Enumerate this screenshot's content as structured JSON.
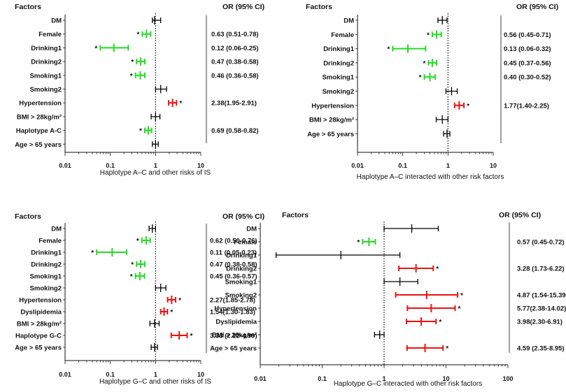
{
  "chart_data": [
    {
      "type": "forest",
      "factors_header": "Factors",
      "or_header": "OR (95% CI)",
      "caption": "Haplotype A–C and other risks of IS",
      "xscale": "log",
      "xlim": [
        0.01,
        10
      ],
      "xticks": [
        "0.01",
        "0.1",
        "1",
        "10"
      ],
      "reference_line": 1,
      "rows": [
        {
          "label": "DM",
          "or": 0.95,
          "lo": 0.85,
          "hi": 1.3,
          "color": "#000000",
          "star": false,
          "text": ""
        },
        {
          "label": "Female",
          "or": 0.63,
          "lo": 0.51,
          "hi": 0.78,
          "color": "#22dd22",
          "star": true,
          "text": "0.63 (0.51-0.78)"
        },
        {
          "label": "Drinking1",
          "or": 0.12,
          "lo": 0.06,
          "hi": 0.25,
          "color": "#22dd22",
          "star": true,
          "text": "0.12 (0.06-0.25)"
        },
        {
          "label": "Drinking2",
          "or": 0.47,
          "lo": 0.38,
          "hi": 0.58,
          "color": "#22dd22",
          "star": true,
          "text": "0.47 (0.38-0.58)"
        },
        {
          "label": "Smoking1",
          "or": 0.46,
          "lo": 0.36,
          "hi": 0.58,
          "color": "#22dd22",
          "star": true,
          "text": "0.46 (0.36-0.58)"
        },
        {
          "label": "Smoking2",
          "or": 1.3,
          "lo": 1.0,
          "hi": 1.75,
          "color": "#000000",
          "star": false,
          "text": ""
        },
        {
          "label": "Hypertension",
          "or": 2.38,
          "lo": 1.95,
          "hi": 2.91,
          "color": "#ee1111",
          "star": true,
          "text": "2.38(1.95-2.91)"
        },
        {
          "label": "BMI > 28kg/m²",
          "or": 1.0,
          "lo": 0.8,
          "hi": 1.25,
          "color": "#000000",
          "star": false,
          "text": ""
        },
        {
          "label": "Haplotype A-C",
          "or": 0.69,
          "lo": 0.58,
          "hi": 0.82,
          "color": "#22dd22",
          "star": true,
          "text": "0.69 (0.58-0.82)"
        },
        {
          "label": "Age > 65 years",
          "or": 1.0,
          "lo": 0.85,
          "hi": 1.15,
          "color": "#000000",
          "star": false,
          "text": ""
        }
      ]
    },
    {
      "type": "forest",
      "factors_header": "Factors",
      "or_header": "OR (95% CI)",
      "caption": "Haplotype A–C interacted with other risk factors",
      "xscale": "log",
      "xlim": [
        0.01,
        10
      ],
      "xticks": [
        "0.01",
        "0.1",
        "1",
        "10"
      ],
      "reference_line": 1,
      "rows": [
        {
          "label": "DM",
          "or": 0.75,
          "lo": 0.6,
          "hi": 0.95,
          "color": "#000000",
          "star": false,
          "text": ""
        },
        {
          "label": "Female",
          "or": 0.56,
          "lo": 0.45,
          "hi": 0.71,
          "color": "#22dd22",
          "star": true,
          "text": "0.56 (0.45-0.71)"
        },
        {
          "label": "Drinking1",
          "or": 0.13,
          "lo": 0.06,
          "hi": 0.32,
          "color": "#22dd22",
          "star": true,
          "text": "0.13 (0.06-0.32)"
        },
        {
          "label": "Drinking2",
          "or": 0.45,
          "lo": 0.37,
          "hi": 0.56,
          "color": "#22dd22",
          "star": true,
          "text": "0.45 (0.37-0.56)"
        },
        {
          "label": "Smoking1",
          "or": 0.4,
          "lo": 0.3,
          "hi": 0.52,
          "color": "#22dd22",
          "star": true,
          "text": "0.40 (0.30-0.52)"
        },
        {
          "label": "Smoking2",
          "or": 1.2,
          "lo": 0.9,
          "hi": 1.6,
          "color": "#000000",
          "star": false,
          "text": ""
        },
        {
          "label": "Hypertension",
          "or": 1.77,
          "lo": 1.4,
          "hi": 2.25,
          "color": "#ee1111",
          "star": true,
          "text": "1.77(1.40-2.25)"
        },
        {
          "label": "BMI > 28kg/m²",
          "or": 0.75,
          "lo": 0.55,
          "hi": 1.0,
          "color": "#000000",
          "star": false,
          "text": ""
        },
        {
          "label": "Age > 65 years",
          "or": 0.95,
          "lo": 0.8,
          "hi": 1.1,
          "color": "#000000",
          "star": false,
          "text": ""
        }
      ]
    },
    {
      "type": "forest",
      "factors_header": "Factors",
      "or_header": "OR (95% CI)",
      "caption": "Haplotype G–C and other risks of IS",
      "xscale": "log",
      "xlim": [
        0.01,
        10
      ],
      "xticks": [
        "0.01",
        "0.1",
        "1",
        "10"
      ],
      "reference_line": 1,
      "rows": [
        {
          "label": "DM",
          "or": 0.85,
          "lo": 0.72,
          "hi": 1.0,
          "color": "#000000",
          "star": false,
          "text": ""
        },
        {
          "label": "Female",
          "or": 0.62,
          "lo": 0.5,
          "hi": 0.76,
          "color": "#22dd22",
          "star": true,
          "text": "0.62 (0.50-0.76)"
        },
        {
          "label": "Drinking1",
          "or": 0.11,
          "lo": 0.05,
          "hi": 0.23,
          "color": "#22dd22",
          "star": true,
          "text": "0.11 (0.05-0.23)"
        },
        {
          "label": "Drinking2",
          "or": 0.47,
          "lo": 0.38,
          "hi": 0.58,
          "color": "#22dd22",
          "star": true,
          "text": "0.47 (0.38-0.58)"
        },
        {
          "label": "Smoking1",
          "or": 0.45,
          "lo": 0.36,
          "hi": 0.57,
          "color": "#22dd22",
          "star": true,
          "text": "0.45 (0.36-0.57)"
        },
        {
          "label": "Smoking2",
          "or": 1.3,
          "lo": 1.0,
          "hi": 1.7,
          "color": "#000000",
          "star": false,
          "text": ""
        },
        {
          "label": "Hypertension",
          "or": 2.27,
          "lo": 1.85,
          "hi": 2.78,
          "color": "#ee1111",
          "star": true,
          "text": "2.27(1.85-2.78)"
        },
        {
          "label": "Dyslipidemia",
          "or": 1.54,
          "lo": 1.3,
          "hi": 1.83,
          "color": "#ee1111",
          "star": true,
          "text": "1.54(1.30-1.83)"
        },
        {
          "label": "BMI > 28kg/m²",
          "or": 0.95,
          "lo": 0.75,
          "hi": 1.2,
          "color": "#000000",
          "star": false,
          "text": ""
        },
        {
          "label": "Haplotype G-C",
          "or": 3.33,
          "lo": 2.22,
          "hi": 4.99,
          "color": "#ee1111",
          "star": true,
          "text": "3.33 (2.22-4.99)"
        },
        {
          "label": "Age > 65 years",
          "or": 0.95,
          "lo": 0.8,
          "hi": 1.1,
          "color": "#000000",
          "star": false,
          "text": ""
        }
      ]
    },
    {
      "type": "forest",
      "factors_header": "Factors",
      "or_header": "OR (95% CI)",
      "caption": "Haplotype G–C interacted with other risk factors",
      "xscale": "log",
      "xlim": [
        0.01,
        100
      ],
      "xticks": [
        "0.01",
        "0.1",
        "1",
        "10",
        "100"
      ],
      "reference_line": 1,
      "rows": [
        {
          "label": "DM",
          "or": 2.8,
          "lo": 1.0,
          "hi": 7.5,
          "color": "#000000",
          "star": false,
          "text": ""
        },
        {
          "label": "Female",
          "or": 0.57,
          "lo": 0.45,
          "hi": 0.72,
          "color": "#22dd22",
          "star": true,
          "text": "0.57 (0.45-0.72)"
        },
        {
          "label": "Drinking1",
          "or": 0.2,
          "lo": 0.018,
          "hi": 1.8,
          "color": "#000000",
          "star": false,
          "text": ""
        },
        {
          "label": "Drinking2",
          "or": 3.28,
          "lo": 1.73,
          "hi": 6.22,
          "color": "#ee1111",
          "star": true,
          "text": "3.28 (1.73-6.22)"
        },
        {
          "label": "Smoking1",
          "or": 1.8,
          "lo": 1.0,
          "hi": 3.5,
          "color": "#000000",
          "star": false,
          "text": ""
        },
        {
          "label": "Smoking2",
          "or": 4.87,
          "lo": 1.54,
          "hi": 15.39,
          "color": "#ee1111",
          "star": true,
          "text": "4.87 (1.54-15.39)"
        },
        {
          "label": "Hypertension",
          "or": 5.77,
          "lo": 2.38,
          "hi": 14.02,
          "color": "#ee1111",
          "star": true,
          "text": "5.77(2.38-14.02)"
        },
        {
          "label": "Dyslipidemia",
          "or": 3.98,
          "lo": 2.3,
          "hi": 6.91,
          "color": "#ee1111",
          "star": true,
          "text": "3.98(2.30-6.91)"
        },
        {
          "label": "BMI > 28kg/m²",
          "or": 0.85,
          "lo": 0.7,
          "hi": 1.0,
          "color": "#000000",
          "star": false,
          "text": ""
        },
        {
          "label": "Age > 65 years",
          "or": 4.59,
          "lo": 2.35,
          "hi": 8.95,
          "color": "#ee1111",
          "star": true,
          "text": "4.59 (2.35-8.95)"
        }
      ]
    }
  ]
}
